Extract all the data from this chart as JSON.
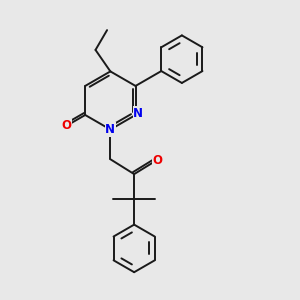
{
  "background_color": "#e8e8e8",
  "bond_color": "#1a1a1a",
  "N_color": "#0000ee",
  "O_color": "#ee0000",
  "lw": 1.4,
  "fs": 8.5,
  "figsize": [
    3.0,
    3.0
  ],
  "dpi": 100,
  "xlim": [
    1.5,
    8.5
  ],
  "ylim": [
    0.5,
    9.5
  ]
}
